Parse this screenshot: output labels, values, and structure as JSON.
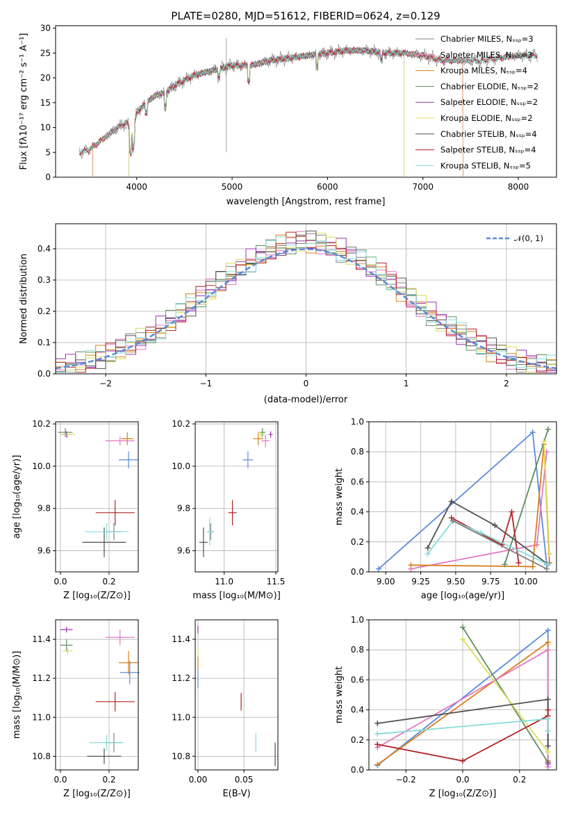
{
  "colors": {
    "chabrier_miles": "#808080",
    "salpeter_miles": "#e377c2",
    "kroupa_miles": "#d97f1a",
    "chabrier_elodie": "#5e8c5e",
    "salpeter_elodie": "#9b30b5",
    "kroupa_elodie": "#dcdc60",
    "chabrier_stelib": "#505050",
    "salpeter_stelib": "#b22222",
    "kroupa_stelib": "#87dbdb",
    "normal": "#5b8bd9"
  },
  "chart_data": [
    {
      "id": "spectrum",
      "type": "line",
      "title": "PLATE=0280, MJD=51612, FIBERID=0624, z=0.129",
      "xlabel": "wavelength [Angstrom, rest frame]",
      "ylabel": "Flux [fλ10⁻¹⁷ erg cm⁻² s⁻¹ A⁻¹]",
      "xlim": [
        3150,
        8400
      ],
      "ylim": [
        0,
        30.5
      ],
      "xticks": [
        "4000",
        "5000",
        "6000",
        "7000",
        "8000"
      ],
      "yticks": [
        "0",
        "5",
        "10",
        "15",
        "20",
        "25",
        "30"
      ],
      "legend": [
        "Chabrier MILES, Nₛₛₚ=3",
        "Salpeter MILES, Nₛₛₚ=3",
        "Kroupa MILES, Nₛₛₚ=4",
        "Chabrier ELODIE, Nₛₛₚ=2",
        "Salpeter ELODIE, Nₛₛₚ=2",
        "Kroupa ELODIE, Nₛₛₚ=2",
        "Chabrier STELIB, Nₛₛₚ=4",
        "Salpeter STELIB, Nₛₛₚ=4",
        "Kroupa STELIB, Nₛₛₚ=5"
      ],
      "continuum": [
        [
          3400,
          5
        ],
        [
          3500,
          5.5
        ],
        [
          3600,
          7
        ],
        [
          3700,
          8.5
        ],
        [
          3800,
          10
        ],
        [
          3900,
          11
        ],
        [
          3950,
          8
        ],
        [
          4000,
          13
        ],
        [
          4100,
          15
        ],
        [
          4200,
          16.5
        ],
        [
          4300,
          17
        ],
        [
          4400,
          18.5
        ],
        [
          4600,
          20.5
        ],
        [
          4800,
          21.5
        ],
        [
          5000,
          22.5
        ],
        [
          5200,
          22.5
        ],
        [
          5400,
          23.5
        ],
        [
          5600,
          24
        ],
        [
          5800,
          24.5
        ],
        [
          6000,
          25
        ],
        [
          6200,
          25.5
        ],
        [
          6400,
          25.5
        ],
        [
          6600,
          25
        ],
        [
          6800,
          25
        ],
        [
          7000,
          24.5
        ],
        [
          7200,
          23.5
        ],
        [
          7400,
          23.5
        ],
        [
          7600,
          23.5
        ],
        [
          7800,
          24
        ],
        [
          8000,
          24.5
        ],
        [
          8200,
          24.5
        ]
      ]
    },
    {
      "id": "residuals",
      "type": "area",
      "xlabel": "(data-model)/error",
      "ylabel": "Normed distribution",
      "xlim": [
        -2.5,
        2.5
      ],
      "ylim": [
        0,
        0.48
      ],
      "xticks": [
        "−2",
        "−1",
        "0",
        "1",
        "2"
      ],
      "yticks": [
        "0.0",
        "0.1",
        "0.2",
        "0.3",
        "0.4"
      ],
      "legend": [
        "𝒩(0, 1)"
      ],
      "bin_width": 0.1
    },
    {
      "id": "age_vs_Z",
      "type": "scatter",
      "xlabel": "Z [log₁₀(Z/Z⊙)]",
      "ylabel": "age  [log₁₀(age/yr)]",
      "xlim": [
        -0.02,
        0.32
      ],
      "ylim": [
        9.5,
        10.21
      ],
      "xticks": [
        "0.0",
        "0.2"
      ],
      "yticks": [
        "9.6",
        "9.8",
        "10.0",
        "10.2"
      ],
      "points": [
        {
          "model": "chabrier_miles",
          "x": 0.22,
          "y": 9.69,
          "xerr": 0.03,
          "yerr": 0.04
        },
        {
          "model": "salpeter_miles",
          "x": 0.245,
          "y": 10.12,
          "xerr": 0.06,
          "yerr": 0.02
        },
        {
          "model": "kroupa_miles",
          "x": 0.275,
          "y": 10.13,
          "xerr": 0.025,
          "yerr": 0.03
        },
        {
          "model": "chabrier_elodie",
          "x": 0.02,
          "y": 10.16,
          "xerr": 0.03,
          "yerr": 0.02
        },
        {
          "model": "salpeter_elodie",
          "x": 0.025,
          "y": 10.15,
          "xerr": 0.02,
          "yerr": 0.015
        },
        {
          "model": "kroupa_elodie",
          "x": 0.03,
          "y": 10.15,
          "xerr": 0.03,
          "yerr": 0.015
        },
        {
          "model": "chabrier_stelib",
          "x": 0.18,
          "y": 9.64,
          "xerr": 0.09,
          "yerr": 0.07
        },
        {
          "model": "salpeter_stelib",
          "x": 0.225,
          "y": 9.78,
          "xerr": 0.08,
          "yerr": 0.06
        },
        {
          "model": "kroupa_stelib",
          "x": 0.19,
          "y": 9.69,
          "xerr": 0.09,
          "yerr": 0.04
        },
        {
          "model": "normal",
          "x": 0.28,
          "y": 10.03,
          "xerr": 0.04,
          "yerr": 0.04
        }
      ]
    },
    {
      "id": "age_vs_mass",
      "type": "scatter",
      "xlabel": "mass [log₁₀(M/M⊙)]",
      "ylabel": "",
      "xlim": [
        10.72,
        11.52
      ],
      "ylim": [
        9.5,
        10.21
      ],
      "xticks": [
        "11.0",
        "11.5"
      ],
      "yticks": [
        "9.6",
        "9.8",
        "10.0",
        "10.2"
      ],
      "points": [
        {
          "model": "chabrier_miles",
          "x": 10.87,
          "y": 9.69,
          "xerr": 0.03,
          "yerr": 0.04
        },
        {
          "model": "salpeter_miles",
          "x": 11.4,
          "y": 10.12,
          "xerr": 0.04,
          "yerr": 0.03
        },
        {
          "model": "kroupa_miles",
          "x": 11.33,
          "y": 10.13,
          "xerr": 0.05,
          "yerr": 0.03
        },
        {
          "model": "chabrier_elodie",
          "x": 11.37,
          "y": 10.16,
          "xerr": 0.03,
          "yerr": 0.02
        },
        {
          "model": "salpeter_elodie",
          "x": 11.45,
          "y": 10.15,
          "xerr": 0.02,
          "yerr": 0.015
        },
        {
          "model": "kroupa_elodie",
          "x": 11.36,
          "y": 10.15,
          "xerr": 0.03,
          "yerr": 0.015
        },
        {
          "model": "chabrier_stelib",
          "x": 10.8,
          "y": 9.64,
          "xerr": 0.04,
          "yerr": 0.07
        },
        {
          "model": "salpeter_stelib",
          "x": 11.08,
          "y": 9.78,
          "xerr": 0.04,
          "yerr": 0.06
        },
        {
          "model": "kroupa_stelib",
          "x": 10.86,
          "y": 9.69,
          "xerr": 0.03,
          "yerr": 0.065
        },
        {
          "model": "normal",
          "x": 11.23,
          "y": 10.03,
          "xerr": 0.05,
          "yerr": 0.04
        }
      ]
    },
    {
      "id": "weight_vs_age",
      "type": "line",
      "xlabel": "age  [log₁₀(age/yr)]",
      "ylabel": "mass weight",
      "xlim": [
        8.88,
        10.22
      ],
      "ylim": [
        0,
        1.0
      ],
      "xticks": [
        "9.00",
        "9.25",
        "9.50",
        "9.75",
        "10.00"
      ],
      "yticks": [
        "0.0",
        "0.2",
        "0.4",
        "0.6",
        "0.8",
        "1.0"
      ],
      "series": [
        {
          "model": "normal",
          "x": [
            8.95,
            10.05,
            10.15
          ],
          "y": [
            0.02,
            0.93,
            0.05
          ]
        },
        {
          "model": "salpeter_miles",
          "x": [
            9.18,
            10.08,
            10.15
          ],
          "y": [
            0.02,
            0.18,
            0.8
          ]
        },
        {
          "model": "kroupa_miles",
          "x": [
            9.18,
            10.05,
            10.13,
            10.17
          ],
          "y": [
            0.045,
            0.035,
            0.85,
            0.06
          ]
        },
        {
          "model": "chabrier_elodie",
          "x": [
            9.85,
            10.16
          ],
          "y": [
            0.05,
            0.95
          ]
        },
        {
          "model": "kroupa_elodie",
          "x": [
            10.13,
            10.17
          ],
          "y": [
            0.87,
            0.12
          ]
        },
        {
          "model": "chabrier_stelib",
          "x": [
            9.3,
            9.47,
            9.78,
            10.16
          ],
          "y": [
            0.16,
            0.47,
            0.31,
            0.05
          ]
        },
        {
          "model": "salpeter_stelib",
          "x": [
            9.47,
            9.83,
            9.9,
            9.95
          ],
          "y": [
            0.36,
            0.18,
            0.4,
            0.06
          ]
        },
        {
          "model": "kroupa_stelib",
          "x": [
            9.3,
            9.48,
            9.68,
            10.16
          ],
          "y": [
            0.12,
            0.34,
            0.26,
            0.05
          ]
        },
        {
          "model": "chabrier_miles",
          "x": [
            9.48,
            10.15
          ],
          "y": [
            0.34,
            0.02
          ]
        }
      ]
    },
    {
      "id": "mass_vs_Z",
      "type": "scatter",
      "xlabel": "Z [log₁₀(Z/Z⊙)]",
      "ylabel": "mass [log₁₀(M/M⊙)]",
      "xlim": [
        -0.02,
        0.32
      ],
      "ylim": [
        10.73,
        11.5
      ],
      "xticks": [
        "0.0",
        "0.2"
      ],
      "yticks": [
        "10.8",
        "11.0",
        "11.2",
        "11.4"
      ],
      "points": [
        {
          "model": "chabrier_miles",
          "x": 0.22,
          "y": 10.87,
          "xerr": 0.03,
          "yerr": 0.05
        },
        {
          "model": "salpeter_miles",
          "x": 0.245,
          "y": 11.41,
          "xerr": 0.06,
          "yerr": 0.04
        },
        {
          "model": "kroupa_miles",
          "x": 0.28,
          "y": 11.28,
          "xerr": 0.04,
          "yerr": 0.06
        },
        {
          "model": "chabrier_elodie",
          "x": 0.025,
          "y": 11.37,
          "xerr": 0.025,
          "yerr": 0.03
        },
        {
          "model": "salpeter_elodie",
          "x": 0.025,
          "y": 11.45,
          "xerr": 0.025,
          "yerr": 0.015
        },
        {
          "model": "kroupa_elodie",
          "x": 0.03,
          "y": 11.34,
          "xerr": 0.02,
          "yerr": 0.015
        },
        {
          "model": "chabrier_stelib",
          "x": 0.18,
          "y": 10.8,
          "xerr": 0.07,
          "yerr": 0.04
        },
        {
          "model": "salpeter_stelib",
          "x": 0.225,
          "y": 11.08,
          "xerr": 0.08,
          "yerr": 0.05
        },
        {
          "model": "kroupa_stelib",
          "x": 0.19,
          "y": 10.87,
          "xerr": 0.07,
          "yerr": 0.04
        },
        {
          "model": "normal",
          "x": 0.285,
          "y": 11.23,
          "xerr": 0.04,
          "yerr": 0.06
        }
      ]
    },
    {
      "id": "mass_vs_ebv",
      "type": "scatter",
      "xlabel": "E(B-V)",
      "ylabel": "",
      "xlim": [
        -0.003,
        0.087
      ],
      "ylim": [
        10.73,
        11.5
      ],
      "xticks": [
        "0.00",
        "0.05"
      ],
      "yticks": [
        "10.8",
        "11.0",
        "11.2",
        "11.4"
      ],
      "points": [
        {
          "model": "chabrier_stelib",
          "x": 0.084,
          "y": 10.81,
          "xerr": 0,
          "yerr": 0.06
        },
        {
          "model": "kroupa_stelib",
          "x": 0.063,
          "y": 10.87,
          "xerr": 0,
          "yerr": 0.05
        },
        {
          "model": "salpeter_stelib",
          "x": 0.047,
          "y": 11.08,
          "xerr": 0,
          "yerr": 0.045
        },
        {
          "model": "normal",
          "x": 0.0,
          "y": 11.2,
          "xerr": 0,
          "yerr": 0.05
        },
        {
          "model": "salpeter_elodie",
          "x": 0.0,
          "y": 11.45,
          "xerr": 0,
          "yerr": 0.02
        },
        {
          "model": "kroupa_elodie",
          "x": 0.0,
          "y": 11.34,
          "xerr": 0,
          "yerr": 0.02
        },
        {
          "model": "kroupa_miles",
          "x": 0.0,
          "y": 11.28,
          "xerr": 0,
          "yerr": 0.03
        }
      ]
    },
    {
      "id": "weight_vs_Z",
      "type": "line",
      "xlabel": "Z [log₁₀(Z/Z⊙)]",
      "ylabel": "mass weight",
      "xlim": [
        -0.33,
        0.33
      ],
      "ylim": [
        0,
        1.0
      ],
      "xticks": [
        "−0.2",
        "0.0",
        "0.2"
      ],
      "yticks": [
        "0.0",
        "0.2",
        "0.4",
        "0.6",
        "0.8",
        "1.0"
      ],
      "series": [
        {
          "model": "normal",
          "x": [
            -0.3,
            0.3,
            0.3
          ],
          "y": [
            0.03,
            0.93,
            0.05
          ]
        },
        {
          "model": "kroupa_miles",
          "x": [
            -0.3,
            0.3,
            0.3
          ],
          "y": [
            0.035,
            0.85,
            0.06
          ]
        },
        {
          "model": "salpeter_miles",
          "x": [
            -0.3,
            0.3,
            0.3
          ],
          "y": [
            0.15,
            0.8,
            0.02
          ]
        },
        {
          "model": "chabrier_elodie",
          "x": [
            0.0,
            0.3
          ],
          "y": [
            0.95,
            0.05
          ]
        },
        {
          "model": "kroupa_elodie",
          "x": [
            0.0,
            0.3
          ],
          "y": [
            0.87,
            0.12
          ]
        },
        {
          "model": "chabrier_stelib",
          "x": [
            -0.3,
            0.3,
            0.3
          ],
          "y": [
            0.31,
            0.47,
            0.16
          ]
        },
        {
          "model": "salpeter_stelib",
          "x": [
            -0.3,
            0.0,
            0.3,
            0.3
          ],
          "y": [
            0.17,
            0.06,
            0.36,
            0.4
          ]
        },
        {
          "model": "kroupa_stelib",
          "x": [
            -0.3,
            0.3,
            0.3
          ],
          "y": [
            0.24,
            0.34,
            0.26
          ]
        },
        {
          "model": "salpeter_elodie",
          "x": [
            0.3
          ],
          "y": [
            0.04
          ]
        }
      ]
    }
  ]
}
